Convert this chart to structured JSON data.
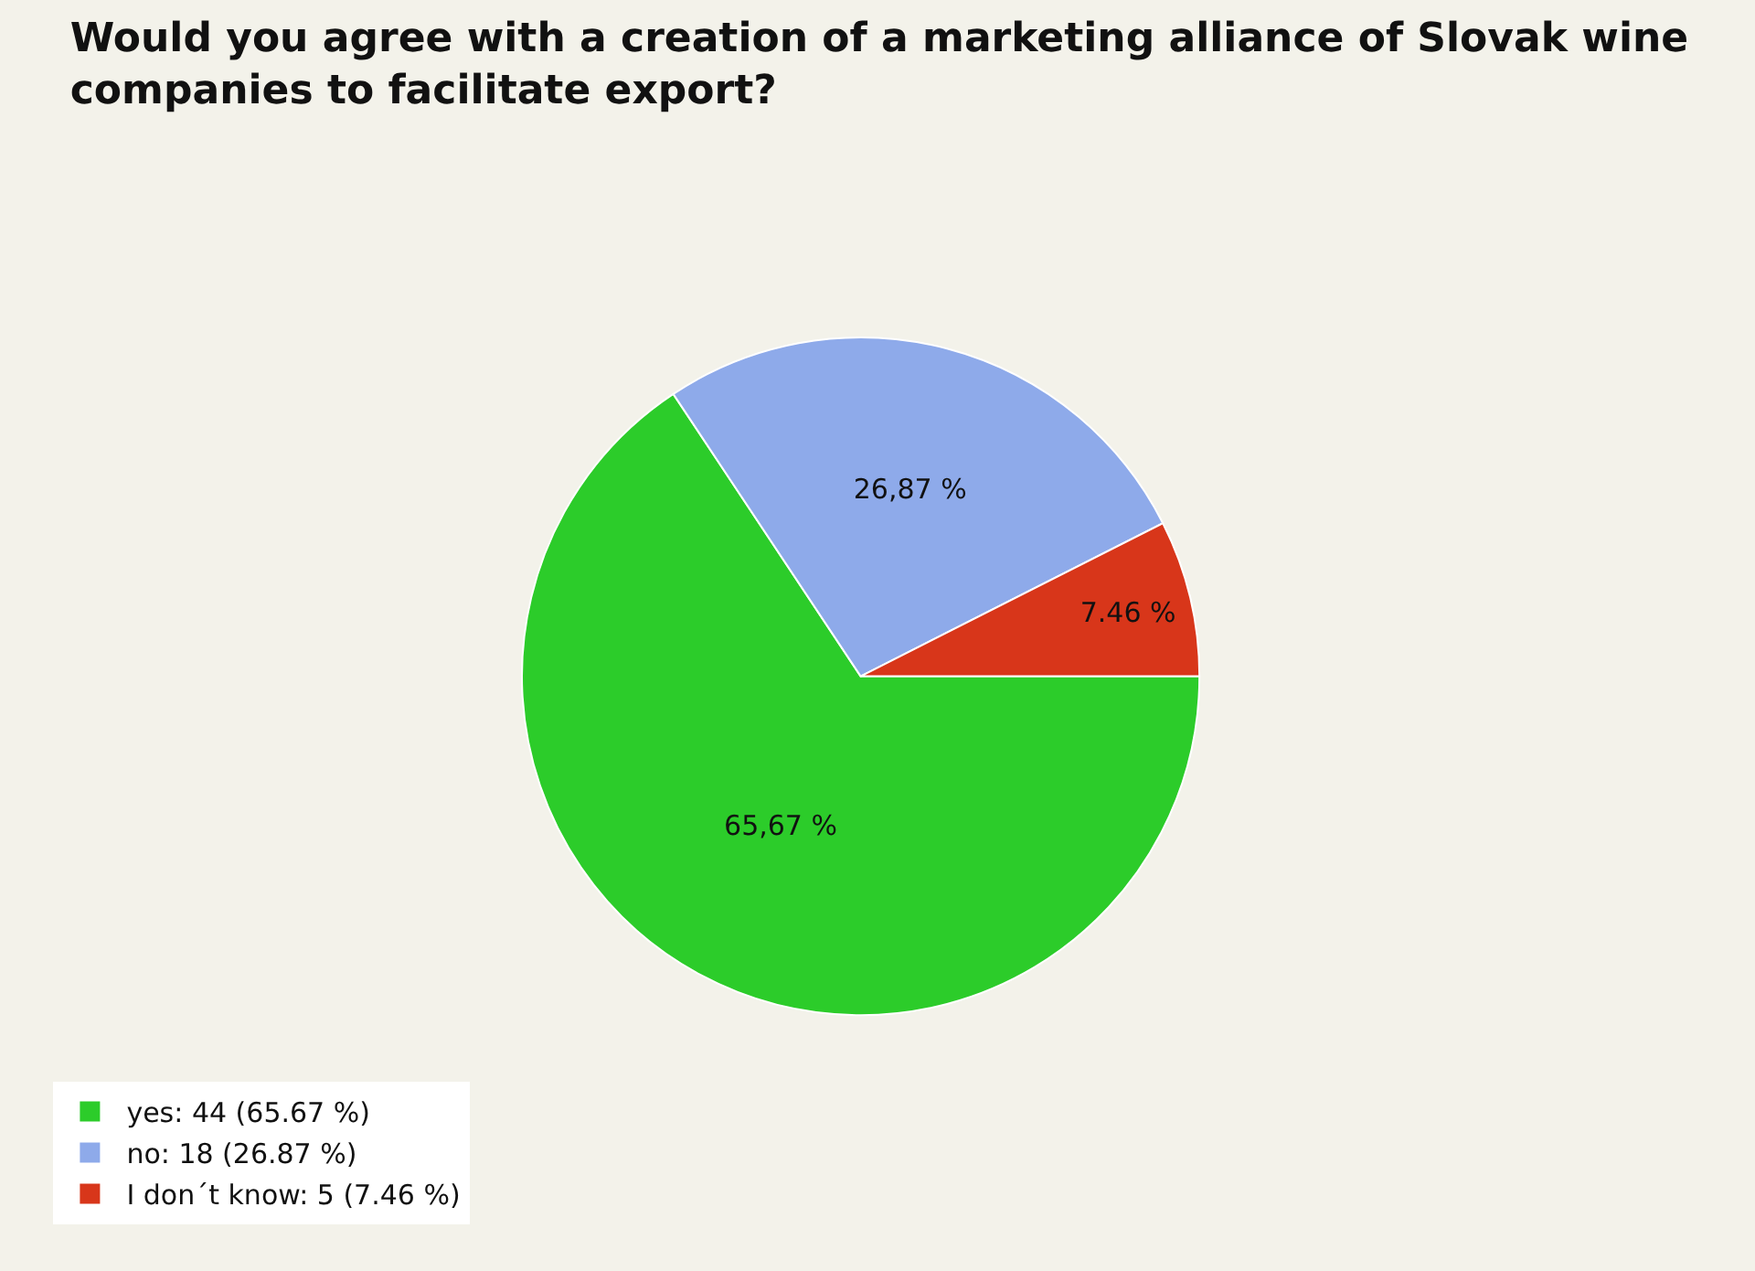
{
  "chart_data": {
    "type": "pie",
    "title": "Would you agree with a creation of a marketing alliance of Slovak wine companies to facilitate export?",
    "categories": [
      "yes: 44 (65.67 %)",
      "no: 18 (26.87 %)",
      "I don´t know: 5 (7.46 %)"
    ],
    "values": [
      65.67,
      26.87,
      7.46
    ],
    "value_labels": [
      "65,67 %",
      "26,87 %",
      "7.46 %"
    ],
    "colors": [
      "#2ccc2a",
      "#8eaaea",
      "#d8361a"
    ],
    "legend": "bottom left"
  }
}
